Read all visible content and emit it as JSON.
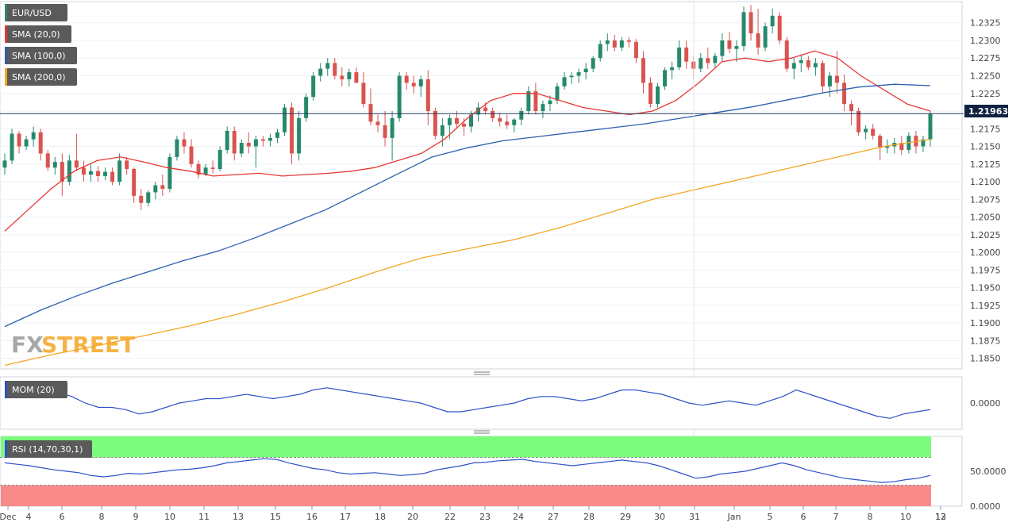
{
  "colors": {
    "bull": "#26896c",
    "bear": "#d9534f",
    "sma20": "#e53935",
    "sma100": "#2a5fb0",
    "sma200": "#f5a623",
    "mom": "#2f50c8",
    "rsi": "#2f50c8",
    "rsi_over": "#7cfc7c",
    "rsi_under": "#f88a8a",
    "legend_bg": "#5a5a5a",
    "price_line": "#1f3a60",
    "price_tag_bg": "#0f2340"
  },
  "logo": {
    "text_fx": "FX",
    "text_street": "STREET"
  },
  "chart_data": [
    {
      "type": "candlestick",
      "title": "EUR/USD",
      "symbol": "EUR/USD",
      "last_price": "1.21963",
      "ylim": [
        1.1835,
        1.2355
      ],
      "y_ticks": [
        "1.2325",
        "1.2300",
        "1.2275",
        "1.2250",
        "1.2225",
        "1.2200",
        "1.2175",
        "1.2150",
        "1.2125",
        "1.2100",
        "1.2075",
        "1.2050",
        "1.2025",
        "1.2000",
        "1.1975",
        "1.1950",
        "1.1925",
        "1.1900",
        "1.1875",
        "1.1850"
      ],
      "x_ticks": [
        "Dec",
        "4",
        "6",
        "8",
        "9",
        "10",
        "11",
        "13",
        "15",
        "16",
        "17",
        "18",
        "20",
        "22",
        "23",
        "24",
        "27",
        "28",
        "29",
        "30",
        "31",
        "Jan",
        "5",
        "6",
        "7",
        "8",
        "10",
        "12",
        "13"
      ],
      "indicators": [
        {
          "name": "SMA (20,0)"
        },
        {
          "name": "SMA (100,0)"
        },
        {
          "name": "SMA (200,0)"
        }
      ],
      "series": [
        {
          "name": "SMA (20,0)",
          "values": [
            1.203,
            1.206,
            1.209,
            1.2115,
            1.213,
            1.2135,
            1.2128,
            1.212,
            1.2115,
            1.2108,
            1.211,
            1.2112,
            1.2108,
            1.211,
            1.2112,
            1.2115,
            1.212,
            1.213,
            1.214,
            1.216,
            1.219,
            1.2215,
            1.2225,
            1.2225,
            1.2215,
            1.2205,
            1.22,
            1.2195,
            1.22,
            1.2215,
            1.224,
            1.227,
            1.2275,
            1.227,
            1.2275,
            1.2285,
            1.2275,
            1.225,
            1.223,
            1.221,
            1.22
          ]
        },
        {
          "name": "SMA (100,0)",
          "values": [
            1.1895,
            1.1918,
            1.1938,
            1.1956,
            1.1972,
            1.1988,
            1.2002,
            1.202,
            1.204,
            1.206,
            1.2085,
            1.211,
            1.2135,
            1.2148,
            1.2158,
            1.2164,
            1.217,
            1.2176,
            1.2182,
            1.219,
            1.2198,
            1.2206,
            1.2216,
            1.2226,
            1.2234,
            1.2238,
            1.2236
          ]
        },
        {
          "name": "SMA (200,0)",
          "values": [
            1.184,
            1.1855,
            1.1868,
            1.1882,
            1.1896,
            1.1912,
            1.193,
            1.195,
            1.1972,
            1.1992,
            1.2005,
            1.2018,
            1.2035,
            1.2055,
            1.2075,
            1.209,
            1.2105,
            1.212,
            1.2135,
            1.215,
            1.216
          ]
        }
      ],
      "candles": [
        [
          1.212,
          1.214,
          1.211,
          1.213
        ],
        [
          1.213,
          1.2175,
          1.2125,
          1.2168
        ],
        [
          1.2168,
          1.2172,
          1.214,
          1.215
        ],
        [
          1.215,
          1.2165,
          1.2145,
          1.216
        ],
        [
          1.216,
          1.2178,
          1.215,
          1.217
        ],
        [
          1.217,
          1.2175,
          1.213,
          1.214
        ],
        [
          1.214,
          1.2145,
          1.2115,
          1.212
        ],
        [
          1.212,
          1.2135,
          1.211,
          1.2128
        ],
        [
          1.2128,
          1.214,
          1.208,
          1.21
        ],
        [
          1.21,
          1.2138,
          1.2095,
          1.213
        ],
        [
          1.213,
          1.2168,
          1.2115,
          1.212
        ],
        [
          1.212,
          1.213,
          1.21,
          1.211
        ],
        [
          1.211,
          1.2125,
          1.21,
          1.2115
        ],
        [
          1.2115,
          1.2122,
          1.21,
          1.2108
        ],
        [
          1.2108,
          1.212,
          1.2102,
          1.2114
        ],
        [
          1.2114,
          1.212,
          1.2095,
          1.21
        ],
        [
          1.21,
          1.214,
          1.2095,
          1.213
        ],
        [
          1.213,
          1.2135,
          1.211,
          1.2118
        ],
        [
          1.2118,
          1.212,
          1.207,
          1.208
        ],
        [
          1.208,
          1.209,
          1.206,
          1.207
        ],
        [
          1.207,
          1.2088,
          1.2065,
          1.2085
        ],
        [
          1.2085,
          1.21,
          1.2075,
          1.2095
        ],
        [
          1.2095,
          1.211,
          1.208,
          1.209
        ],
        [
          1.209,
          1.214,
          1.2085,
          1.2135
        ],
        [
          1.2135,
          1.2165,
          1.213,
          1.216
        ],
        [
          1.216,
          1.217,
          1.214,
          1.215
        ],
        [
          1.215,
          1.216,
          1.212,
          1.2125
        ],
        [
          1.2125,
          1.213,
          1.2105,
          1.211
        ],
        [
          1.211,
          1.2125,
          1.2108,
          1.212
        ],
        [
          1.212,
          1.213,
          1.2112,
          1.2118
        ],
        [
          1.2118,
          1.215,
          1.2115,
          1.2145
        ],
        [
          1.2145,
          1.2178,
          1.214,
          1.2172
        ],
        [
          1.2172,
          1.2178,
          1.213,
          1.214
        ],
        [
          1.214,
          1.216,
          1.2135,
          1.2155
        ],
        [
          1.2155,
          1.217,
          1.214,
          1.215
        ],
        [
          1.215,
          1.2165,
          1.212,
          1.216
        ],
        [
          1.216,
          1.2165,
          1.215,
          1.2158
        ],
        [
          1.2158,
          1.2168,
          1.215,
          1.2162
        ],
        [
          1.2162,
          1.2175,
          1.2155,
          1.217
        ],
        [
          1.217,
          1.221,
          1.2165,
          1.2205
        ],
        [
          1.2205,
          1.2212,
          1.2125,
          1.214
        ],
        [
          1.214,
          1.22,
          1.213,
          1.219
        ],
        [
          1.219,
          1.2225,
          1.2185,
          1.222
        ],
        [
          1.222,
          1.2255,
          1.2215,
          1.225
        ],
        [
          1.225,
          1.2268,
          1.2242,
          1.226
        ],
        [
          1.226,
          1.2275,
          1.225,
          1.2268
        ],
        [
          1.2268,
          1.2275,
          1.2245,
          1.225
        ],
        [
          1.225,
          1.2262,
          1.2235,
          1.2245
        ],
        [
          1.2245,
          1.226,
          1.2235,
          1.2255
        ],
        [
          1.2255,
          1.2262,
          1.224,
          1.224
        ],
        [
          1.224,
          1.2255,
          1.2205,
          1.221
        ],
        [
          1.221,
          1.2232,
          1.218,
          1.2185
        ],
        [
          1.2185,
          1.2195,
          1.217,
          1.218
        ],
        [
          1.218,
          1.22,
          1.215,
          1.2162
        ],
        [
          1.2162,
          1.22,
          1.213,
          1.219
        ],
        [
          1.219,
          1.2255,
          1.2185,
          1.225
        ],
        [
          1.225,
          1.2255,
          1.223,
          1.224
        ],
        [
          1.224,
          1.225,
          1.2225,
          1.2235
        ],
        [
          1.2235,
          1.225,
          1.222,
          1.2245
        ],
        [
          1.2245,
          1.2258,
          1.218,
          1.22
        ],
        [
          1.22,
          1.2205,
          1.216,
          1.2165
        ],
        [
          1.2165,
          1.219,
          1.215,
          1.218
        ],
        [
          1.218,
          1.2195,
          1.216,
          1.219
        ],
        [
          1.219,
          1.22,
          1.2175,
          1.2182
        ],
        [
          1.2182,
          1.219,
          1.2165,
          1.2178
        ],
        [
          1.2178,
          1.22,
          1.217,
          1.2195
        ],
        [
          1.2195,
          1.2212,
          1.2185,
          1.2205
        ],
        [
          1.2205,
          1.2212,
          1.2195,
          1.22
        ],
        [
          1.22,
          1.2205,
          1.2185,
          1.219
        ],
        [
          1.219,
          1.2198,
          1.2178,
          1.2185
        ],
        [
          1.2185,
          1.2195,
          1.2175,
          1.218
        ],
        [
          1.218,
          1.219,
          1.217,
          1.2188
        ],
        [
          1.2188,
          1.2205,
          1.218,
          1.22
        ],
        [
          1.22,
          1.2235,
          1.2195,
          1.2228
        ],
        [
          1.2228,
          1.224,
          1.2195,
          1.22
        ],
        [
          1.22,
          1.2215,
          1.219,
          1.221
        ],
        [
          1.221,
          1.2222,
          1.22,
          1.2215
        ],
        [
          1.2215,
          1.224,
          1.221,
          1.2235
        ],
        [
          1.2235,
          1.2255,
          1.223,
          1.2248
        ],
        [
          1.2248,
          1.2255,
          1.2238,
          1.225
        ],
        [
          1.225,
          1.226,
          1.224,
          1.2255
        ],
        [
          1.2255,
          1.2268,
          1.2245,
          1.226
        ],
        [
          1.226,
          1.2278,
          1.2255,
          1.2275
        ],
        [
          1.2275,
          1.23,
          1.227,
          1.2295
        ],
        [
          1.2295,
          1.231,
          1.2285,
          1.23
        ],
        [
          1.23,
          1.2308,
          1.2285,
          1.229
        ],
        [
          1.229,
          1.2305,
          1.2285,
          1.23
        ],
        [
          1.23,
          1.2305,
          1.229,
          1.2298
        ],
        [
          1.2298,
          1.2302,
          1.2268,
          1.2275
        ],
        [
          1.2275,
          1.2285,
          1.2225,
          1.224
        ],
        [
          1.224,
          1.2248,
          1.2205,
          1.221
        ],
        [
          1.221,
          1.224,
          1.2205,
          1.2235
        ],
        [
          1.2235,
          1.2262,
          1.223,
          1.2258
        ],
        [
          1.2258,
          1.227,
          1.2245,
          1.2262
        ],
        [
          1.2262,
          1.23,
          1.2258,
          1.229
        ],
        [
          1.229,
          1.23,
          1.226,
          1.227
        ],
        [
          1.227,
          1.2278,
          1.2245,
          1.226
        ],
        [
          1.226,
          1.2282,
          1.2255,
          1.2275
        ],
        [
          1.2275,
          1.229,
          1.226,
          1.2268
        ],
        [
          1.2268,
          1.2282,
          1.2262,
          1.2278
        ],
        [
          1.2278,
          1.231,
          1.227,
          1.23
        ],
        [
          1.23,
          1.2312,
          1.2282,
          1.2288
        ],
        [
          1.2288,
          1.23,
          1.227,
          1.2292
        ],
        [
          1.2292,
          1.2348,
          1.2285,
          1.234
        ],
        [
          1.234,
          1.235,
          1.23,
          1.231
        ],
        [
          1.231,
          1.2345,
          1.228,
          1.229
        ],
        [
          1.229,
          1.2325,
          1.2285,
          1.232
        ],
        [
          1.232,
          1.2345,
          1.231,
          1.2335
        ],
        [
          1.2335,
          1.234,
          1.2295,
          1.23
        ],
        [
          1.23,
          1.2305,
          1.2255,
          1.226
        ],
        [
          1.226,
          1.2275,
          1.2245,
          1.2268
        ],
        [
          1.2268,
          1.228,
          1.2255,
          1.2272
        ],
        [
          1.2272,
          1.2278,
          1.2258,
          1.2262
        ],
        [
          1.2262,
          1.2275,
          1.225,
          1.2268
        ],
        [
          1.2268,
          1.2272,
          1.2225,
          1.2235
        ],
        [
          1.2235,
          1.2255,
          1.222,
          1.225
        ],
        [
          1.225,
          1.2285,
          1.2225,
          1.224
        ],
        [
          1.224,
          1.2252,
          1.22,
          1.221
        ],
        [
          1.221,
          1.2215,
          1.218,
          1.22
        ],
        [
          1.22,
          1.2205,
          1.2165,
          1.217
        ],
        [
          1.217,
          1.218,
          1.216,
          1.2175
        ],
        [
          1.2175,
          1.2182,
          1.216,
          1.2165
        ],
        [
          1.2165,
          1.2168,
          1.213,
          1.2148
        ],
        [
          1.2148,
          1.216,
          1.214,
          1.215
        ],
        [
          1.215,
          1.2162,
          1.214,
          1.2155
        ],
        [
          1.2155,
          1.2165,
          1.2138,
          1.2145
        ],
        [
          1.2145,
          1.217,
          1.214,
          1.2165
        ],
        [
          1.2165,
          1.2172,
          1.214,
          1.215
        ],
        [
          1.215,
          1.2165,
          1.2142,
          1.216
        ],
        [
          1.216,
          1.22,
          1.215,
          1.2196
        ]
      ]
    },
    {
      "type": "line",
      "title": "MOM (20)",
      "indicator": "MOM (20)",
      "ylim": [
        -0.012,
        0.012
      ],
      "y_ticks": [
        "0.0000"
      ],
      "series": [
        {
          "name": "MOM (20)",
          "values": [
            0.004,
            0.006,
            0.007,
            0.006,
            0.005,
            0.003,
            0.0,
            -0.002,
            -0.002,
            -0.003,
            -0.005,
            -0.004,
            -0.002,
            0.0,
            0.001,
            0.002,
            0.002,
            0.003,
            0.004,
            0.003,
            0.002,
            0.003,
            0.004,
            0.006,
            0.007,
            0.006,
            0.005,
            0.004,
            0.003,
            0.002,
            0.001,
            0.0,
            -0.002,
            -0.004,
            -0.004,
            -0.003,
            -0.002,
            -0.001,
            0.0,
            0.002,
            0.003,
            0.003,
            0.002,
            0.001,
            0.002,
            0.004,
            0.006,
            0.006,
            0.005,
            0.004,
            0.002,
            0.0,
            -0.001,
            0.0,
            0.001,
            0.0,
            -0.001,
            0.001,
            0.003,
            0.006,
            0.004,
            0.002,
            0.0,
            -0.002,
            -0.004,
            -0.006,
            -0.007,
            -0.005,
            -0.004,
            -0.003
          ]
        }
      ]
    },
    {
      "type": "line",
      "title": "RSI (14,70,30,1)",
      "indicator": "RSI (14,70,30,1)",
      "ylim": [
        0,
        100
      ],
      "y_ticks": [
        "50.0000",
        "0.0000"
      ],
      "series": [
        {
          "name": "RSI (14,70,30,1)",
          "values": [
            62,
            60,
            58,
            55,
            52,
            50,
            48,
            44,
            42,
            44,
            47,
            46,
            48,
            50,
            52,
            53,
            55,
            58,
            62,
            64,
            66,
            68,
            67,
            62,
            58,
            54,
            52,
            48,
            46,
            47,
            48,
            46,
            44,
            45,
            47,
            52,
            55,
            58,
            62,
            63,
            65,
            66,
            67,
            64,
            62,
            60,
            58,
            60,
            62,
            64,
            66,
            64,
            62,
            58,
            52,
            46,
            40,
            42,
            46,
            48,
            50,
            54,
            58,
            62,
            58,
            52,
            48,
            44,
            40,
            38,
            36,
            34,
            35,
            38,
            40,
            44
          ]
        }
      ]
    }
  ]
}
